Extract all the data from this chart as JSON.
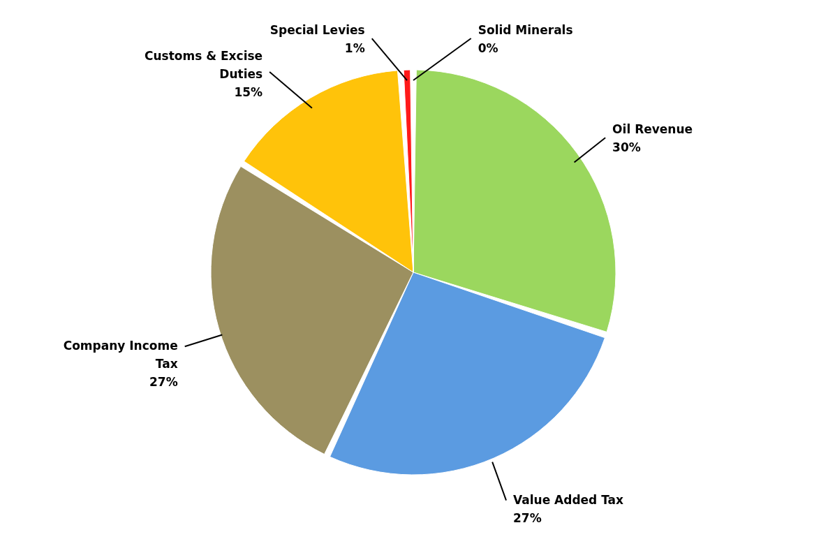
{
  "chart_data": {
    "type": "pie",
    "categories": [
      "Oil Revenue",
      "Value Added Tax",
      "Company Income Tax",
      "Customs & Excise Duties",
      "Special Levies",
      "Solid Minerals"
    ],
    "values": [
      30,
      27,
      27,
      15,
      1,
      0
    ],
    "value_labels": [
      "30%",
      "27%",
      "27%",
      "15%",
      "1%",
      "0%"
    ],
    "colors": [
      "#9bd75e",
      "#5b9be1",
      "#9c9060",
      "#ffc30a",
      "#ff1a1a",
      "#7030a0"
    ],
    "legend": false
  }
}
